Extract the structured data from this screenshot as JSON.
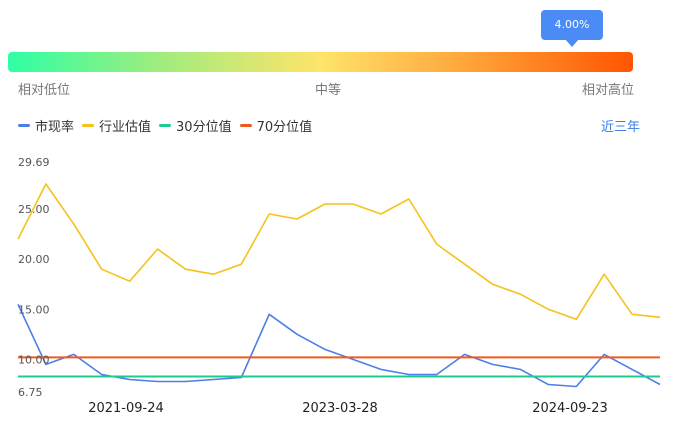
{
  "gauge": {
    "percentile": "4.00%",
    "percentile_value": 4.0,
    "label_low": "相对低位",
    "label_mid": "中等",
    "label_high": "相对高位"
  },
  "legend": {
    "items": [
      {
        "name": "市现率",
        "color": "#4c7fe8"
      },
      {
        "name": "行业估值",
        "color": "#f6c21c"
      },
      {
        "name": "30分位值",
        "color": "#1fcb8f"
      },
      {
        "name": "70分位值",
        "color": "#f05a1c"
      }
    ]
  },
  "period_selector": "近三年",
  "chart_data": {
    "type": "line",
    "ylim": [
      6.75,
      29.69
    ],
    "y_ticks": [
      "29.69",
      "25.00",
      "20.00",
      "15.00",
      "10.00",
      "6.75"
    ],
    "y_tick_values": [
      29.69,
      25,
      20,
      15,
      10,
      6.75
    ],
    "x_ticks": [
      "2021-09-24",
      "2023-03-28",
      "2024-09-23"
    ],
    "x": [
      "2021-05",
      "2021-07",
      "2021-09",
      "2021-11",
      "2022-01",
      "2022-03",
      "2022-05",
      "2022-07",
      "2022-09",
      "2022-11",
      "2023-01",
      "2023-03",
      "2023-05",
      "2023-07",
      "2023-09",
      "2023-11",
      "2024-01",
      "2024-03",
      "2024-05",
      "2024-07",
      "2024-09",
      "2024-11",
      "2025-01",
      "2025-03"
    ],
    "series": [
      {
        "name": "市现率",
        "color": "#4c7fe8",
        "values": [
          15.5,
          9.5,
          10.5,
          8.5,
          8.0,
          7.8,
          7.8,
          8.0,
          8.2,
          14.5,
          12.5,
          11.0,
          10.0,
          9.0,
          8.5,
          8.5,
          10.5,
          9.5,
          9.0,
          7.5,
          7.3,
          10.5,
          9.0,
          7.5
        ]
      },
      {
        "name": "行业估值",
        "color": "#f6c21c",
        "values": [
          22.0,
          27.5,
          23.5,
          19.0,
          17.8,
          21.0,
          19.0,
          18.5,
          19.5,
          24.5,
          24.0,
          25.5,
          25.5,
          24.5,
          26.0,
          21.5,
          19.5,
          17.5,
          16.5,
          15.0,
          14.0,
          18.5,
          14.5,
          14.2
        ]
      },
      {
        "name": "30分位值",
        "color": "#1fcb8f",
        "values": [
          8.3,
          8.3,
          8.3,
          8.3,
          8.3,
          8.3,
          8.3,
          8.3,
          8.3,
          8.3,
          8.3,
          8.3,
          8.3,
          8.3,
          8.3,
          8.3,
          8.3,
          8.3,
          8.3,
          8.3,
          8.3,
          8.3,
          8.3,
          8.3
        ]
      },
      {
        "name": "70分位值",
        "color": "#f05a1c",
        "values": [
          10.2,
          10.2,
          10.2,
          10.2,
          10.2,
          10.2,
          10.2,
          10.2,
          10.2,
          10.2,
          10.2,
          10.2,
          10.2,
          10.2,
          10.2,
          10.2,
          10.2,
          10.2,
          10.2,
          10.2,
          10.2,
          10.2,
          10.2,
          10.2
        ]
      }
    ]
  }
}
